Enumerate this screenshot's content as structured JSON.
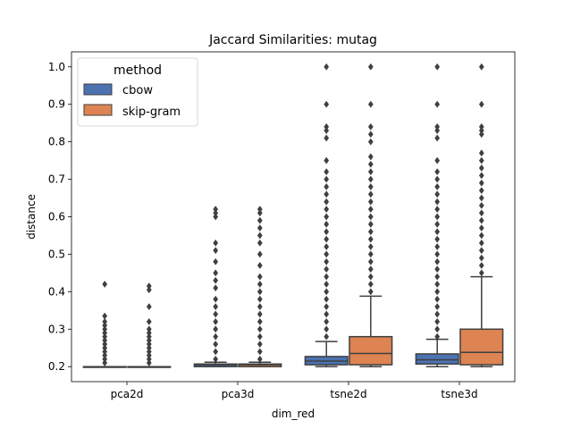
{
  "chart_data": {
    "type": "box",
    "title": "Jaccard Similarities: mutag",
    "xlabel": "dim_red",
    "ylabel": "distance",
    "categories": [
      "pca2d",
      "pca3d",
      "tsne2d",
      "tsne3d"
    ],
    "yticks": [
      "0.2",
      "0.3",
      "0.4",
      "0.5",
      "0.6",
      "0.7",
      "0.8",
      "0.9",
      "1.0"
    ],
    "ylim": [
      0.16,
      1.04
    ],
    "legend": {
      "title": "method",
      "placement": "upper-left"
    },
    "series": [
      {
        "name": "cbow",
        "color": "#4c72b0",
        "boxes": [
          {
            "q1": 0.2,
            "median": 0.2,
            "q3": 0.2,
            "whislo": 0.2,
            "whishi": 0.2,
            "outliers": [
              0.21,
              0.22,
              0.23,
              0.24,
              0.25,
              0.26,
              0.27,
              0.28,
              0.29,
              0.3,
              0.31,
              0.32,
              0.335,
              0.42
            ]
          },
          {
            "q1": 0.2,
            "median": 0.205,
            "q3": 0.207,
            "whislo": 0.2,
            "whishi": 0.212,
            "outliers": [
              0.22,
              0.24,
              0.26,
              0.28,
              0.3,
              0.32,
              0.34,
              0.36,
              0.38,
              0.41,
              0.43,
              0.45,
              0.48,
              0.51,
              0.53,
              0.6,
              0.61,
              0.62
            ]
          },
          {
            "q1": 0.205,
            "median": 0.215,
            "q3": 0.227,
            "whislo": 0.2,
            "whishi": 0.267,
            "outliers": [
              0.28,
              0.3,
              0.32,
              0.34,
              0.36,
              0.38,
              0.4,
              0.42,
              0.44,
              0.46,
              0.48,
              0.5,
              0.52,
              0.54,
              0.56,
              0.58,
              0.6,
              0.62,
              0.64,
              0.66,
              0.68,
              0.7,
              0.72,
              0.75,
              0.81,
              0.83,
              0.84,
              0.9,
              1.0
            ]
          },
          {
            "q1": 0.207,
            "median": 0.218,
            "q3": 0.234,
            "whislo": 0.2,
            "whishi": 0.273,
            "outliers": [
              0.28,
              0.3,
              0.32,
              0.34,
              0.36,
              0.38,
              0.4,
              0.42,
              0.44,
              0.46,
              0.48,
              0.5,
              0.52,
              0.54,
              0.56,
              0.58,
              0.6,
              0.62,
              0.64,
              0.66,
              0.68,
              0.7,
              0.72,
              0.75,
              0.81,
              0.83,
              0.84,
              0.9,
              1.0
            ]
          }
        ]
      },
      {
        "name": "skip-gram",
        "color": "#dd8452",
        "boxes": [
          {
            "q1": 0.2,
            "median": 0.2,
            "q3": 0.2,
            "whislo": 0.2,
            "whishi": 0.2,
            "outliers": [
              0.21,
              0.22,
              0.23,
              0.24,
              0.25,
              0.26,
              0.27,
              0.28,
              0.29,
              0.3,
              0.32,
              0.36,
              0.405,
              0.415
            ]
          },
          {
            "q1": 0.2,
            "median": 0.205,
            "q3": 0.207,
            "whislo": 0.2,
            "whishi": 0.212,
            "outliers": [
              0.22,
              0.24,
              0.26,
              0.28,
              0.3,
              0.32,
              0.34,
              0.36,
              0.38,
              0.4,
              0.42,
              0.44,
              0.47,
              0.5,
              0.53,
              0.55,
              0.57,
              0.59,
              0.61,
              0.62
            ]
          },
          {
            "q1": 0.205,
            "median": 0.235,
            "q3": 0.28,
            "whislo": 0.2,
            "whishi": 0.388,
            "outliers": [
              0.4,
              0.42,
              0.44,
              0.46,
              0.48,
              0.5,
              0.52,
              0.54,
              0.56,
              0.58,
              0.6,
              0.62,
              0.64,
              0.66,
              0.68,
              0.7,
              0.72,
              0.74,
              0.76,
              0.8,
              0.82,
              0.84,
              0.9,
              1.0
            ]
          },
          {
            "q1": 0.205,
            "median": 0.238,
            "q3": 0.3,
            "whislo": 0.2,
            "whishi": 0.44,
            "outliers": [
              0.45,
              0.47,
              0.49,
              0.51,
              0.53,
              0.55,
              0.57,
              0.59,
              0.61,
              0.63,
              0.65,
              0.67,
              0.69,
              0.71,
              0.73,
              0.75,
              0.77,
              0.82,
              0.83,
              0.84,
              0.9,
              1.0
            ]
          }
        ]
      }
    ]
  }
}
